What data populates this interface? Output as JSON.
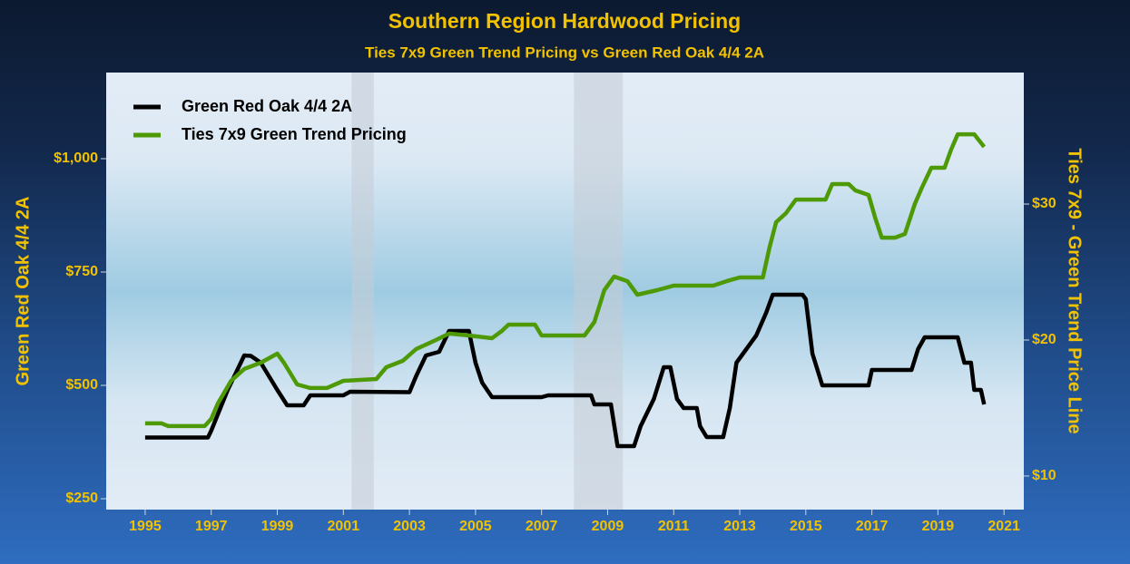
{
  "chart_data": {
    "type": "line",
    "title": "Southern Region Hardwood Pricing",
    "subtitle": "Ties 7x9 Green Trend Pricing vs Green Red Oak 4/4 2A",
    "y_label": "Green Red Oak 4/4 2A",
    "y2_label": "Ties 7x9 - Green Trend Price Line",
    "xlim": [
      1993.82,
      2021.6
    ],
    "xticks": [
      1995,
      1997,
      1999,
      2001,
      2003,
      2005,
      2007,
      2009,
      2011,
      2013,
      2015,
      2017,
      2019,
      2021
    ],
    "ylim": [
      226,
      1190
    ],
    "yticks": [
      {
        "value": 250,
        "label": "$250"
      },
      {
        "value": 500,
        "label": "$500"
      },
      {
        "value": 750,
        "label": "$750"
      },
      {
        "value": 1000,
        "label": "$1,000"
      }
    ],
    "y2lim": [
      7.53,
      39.67
    ],
    "y2ticks": [
      {
        "value": 10,
        "label": "$10"
      },
      {
        "value": 20,
        "label": "$20"
      },
      {
        "value": 30,
        "label": "$30"
      }
    ],
    "shaded_regions": [
      [
        2001.25,
        2001.92
      ],
      [
        2007.98,
        2009.46
      ]
    ],
    "legend": "top-left",
    "series": [
      {
        "name": "Green Red Oak 4/4 2A",
        "color": "#000000",
        "x": [
          1995,
          1996.9,
          1997.0,
          1997.5,
          1998.0,
          1998.2,
          1998.5,
          1999.0,
          1999.3,
          1999.8,
          2000.0,
          2001.0,
          2001.2,
          2003.0,
          2003.2,
          2003.5,
          2003.9,
          2004.2,
          2004.8,
          2005.0,
          2005.2,
          2005.5,
          2007.0,
          2007.2,
          2008.5,
          2008.6,
          2009.1,
          2009.3,
          2009.8,
          2010.0,
          2010.4,
          2010.7,
          2010.9,
          2011.1,
          2011.3,
          2011.7,
          2011.8,
          2012.0,
          2012.5,
          2012.7,
          2012.9,
          2013.2,
          2013.5,
          2013.8,
          2014.0,
          2014.9,
          2015.0,
          2015.2,
          2015.5,
          2016.9,
          2017.0,
          2018.2,
          2018.4,
          2018.6,
          2019.6,
          2019.8,
          2020.0,
          2020.1,
          2020.3,
          2020.4
        ],
        "values": [
          385,
          385,
          400,
          490,
          566,
          565,
          550,
          490,
          456,
          456,
          478,
          478,
          486,
          485,
          520,
          566,
          574,
          620,
          620,
          550,
          506,
          474,
          474,
          478,
          478,
          458,
          458,
          366,
          366,
          410,
          470,
          540,
          540,
          470,
          450,
          450,
          410,
          386,
          386,
          450,
          550,
          580,
          610,
          660,
          700,
          700,
          690,
          570,
          500,
          500,
          534,
          534,
          580,
          606,
          606,
          550,
          550,
          490,
          490,
          458
        ]
      },
      {
        "name": "Ties 7x9 Green Trend Pricing",
        "color": "#4e9a06",
        "axis": "y2",
        "x": [
          1995,
          1995.5,
          1995.7,
          1996.8,
          1997.0,
          1997.2,
          1997.6,
          1998.0,
          1998.5,
          1999.0,
          1999.2,
          1999.6,
          2000.0,
          2000.5,
          2001.0,
          2002.0,
          2002.3,
          2002.8,
          2003.2,
          2003.8,
          2004.2,
          2004.8,
          2005.5,
          2005.8,
          2006.0,
          2006.8,
          2007.0,
          2008.3,
          2008.6,
          2008.9,
          2009.2,
          2009.6,
          2009.9,
          2010.5,
          2011.0,
          2012.2,
          2012.6,
          2013.0,
          2013.7,
          2013.9,
          2014.1,
          2014.4,
          2014.7,
          2015.6,
          2015.8,
          2016.3,
          2016.5,
          2016.9,
          2017.1,
          2017.3,
          2017.7,
          2018.0,
          2018.3,
          2018.5,
          2018.8,
          2019.2,
          2019.4,
          2019.6,
          2020.1,
          2020.4
        ],
        "values": [
          13.87,
          13.87,
          13.67,
          13.67,
          14.2,
          15.33,
          17,
          17.87,
          18.33,
          19,
          18.33,
          16.73,
          16.47,
          16.47,
          17,
          17.13,
          18,
          18.47,
          19.33,
          20,
          20.47,
          20.33,
          20.13,
          20.67,
          21.13,
          21.13,
          20.33,
          20.33,
          21.33,
          23.67,
          24.67,
          24.33,
          23.33,
          23.67,
          24,
          24,
          24.33,
          24.6,
          24.6,
          26.8,
          28.67,
          29.33,
          30.33,
          30.33,
          31.47,
          31.47,
          31,
          30.67,
          29,
          27.53,
          27.53,
          27.8,
          30,
          31.13,
          32.67,
          32.67,
          34,
          35.13,
          35.13,
          34.2
        ]
      }
    ]
  }
}
